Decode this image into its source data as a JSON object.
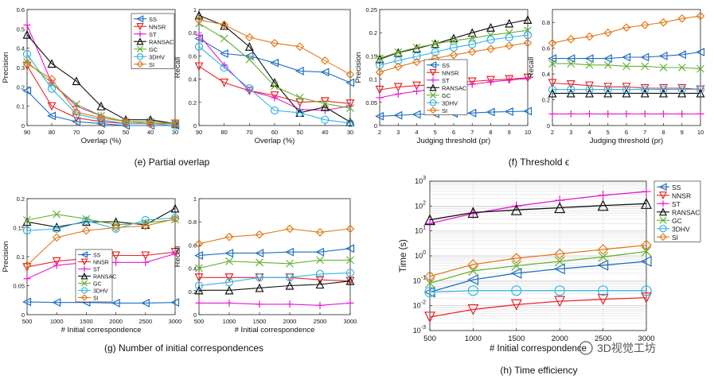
{
  "legend_series": [
    {
      "name": "SS",
      "color": "#1f6fbf",
      "marker": "triangle-left"
    },
    {
      "name": "NNSR",
      "color": "#e8262a",
      "marker": "triangle-down"
    },
    {
      "name": "ST",
      "color": "#e61ad0",
      "marker": "plus"
    },
    {
      "name": "RANSAC",
      "color": "#111111",
      "marker": "triangle-up"
    },
    {
      "name": "GC",
      "color": "#66b032",
      "marker": "x"
    },
    {
      "name": "3DHV",
      "color": "#33b5e5",
      "marker": "circle"
    },
    {
      "name": "SI",
      "color": "#e07b1a",
      "marker": "diamond"
    }
  ],
  "captions": {
    "e": "(e)  Partial overlap",
    "f": "(f)  Threshold ϵ",
    "g": "(g)  Number of initial correspondences",
    "h": "(h)  Time efficiency"
  },
  "watermark": "3D视觉工坊",
  "chart_data": [
    {
      "id": "e-precision",
      "type": "line",
      "ylabel": "Precision",
      "xlabel": "Overlap (%)",
      "x": [
        90,
        80,
        70,
        60,
        50,
        40,
        30
      ],
      "xticks": [
        "90",
        "80",
        "70",
        "60",
        "50",
        "40",
        "30"
      ],
      "ylim": [
        0,
        0.6
      ],
      "yticks": [
        "0",
        "0.1",
        "0.2",
        "0.3",
        "0.4",
        "0.5",
        "0.6"
      ],
      "legend": "top-right",
      "series": [
        {
          "name": "SS",
          "values": [
            0.18,
            0.05,
            0.02,
            0.01,
            0.0,
            0.0,
            0.0
          ]
        },
        {
          "name": "NNSR",
          "values": [
            0.31,
            0.1,
            0.04,
            0.02,
            0.01,
            0.01,
            0.01
          ]
        },
        {
          "name": "ST",
          "values": [
            0.52,
            0.22,
            0.1,
            0.05,
            0.02,
            0.02,
            0.01
          ]
        },
        {
          "name": "RANSAC",
          "values": [
            0.47,
            0.32,
            0.23,
            0.1,
            0.03,
            0.03,
            0.01
          ]
        },
        {
          "name": "GC",
          "values": [
            0.33,
            0.22,
            0.11,
            0.05,
            0.02,
            0.02,
            0.01
          ]
        },
        {
          "name": "3DHV",
          "values": [
            0.37,
            0.19,
            0.06,
            0.03,
            0.01,
            0.01,
            0.0
          ]
        },
        {
          "name": "SI",
          "values": [
            0.32,
            0.24,
            0.07,
            0.04,
            0.02,
            0.01,
            0.01
          ]
        }
      ]
    },
    {
      "id": "e-recall",
      "type": "line",
      "ylabel": "Recall",
      "xlabel": "Overlap (%)",
      "x": [
        90,
        80,
        70,
        60,
        50,
        40,
        30
      ],
      "xticks": [
        "90",
        "80",
        "70",
        "60",
        "50",
        "40",
        "30"
      ],
      "ylim": [
        0,
        1.0
      ],
      "yticks": [
        "0",
        "0.2",
        "0.4",
        "0.6",
        "0.8",
        "1"
      ],
      "legend": "none",
      "series": [
        {
          "name": "SS",
          "values": [
            0.75,
            0.62,
            0.6,
            0.54,
            0.47,
            0.46,
            0.37
          ]
        },
        {
          "name": "NNSR",
          "values": [
            0.51,
            0.37,
            0.3,
            0.26,
            0.2,
            0.21,
            0.19
          ]
        },
        {
          "name": "ST",
          "values": [
            0.78,
            0.52,
            0.3,
            0.24,
            0.14,
            0.13,
            0.17
          ]
        },
        {
          "name": "RANSAC",
          "values": [
            0.95,
            0.86,
            0.68,
            0.37,
            0.11,
            0.16,
            0.03
          ]
        },
        {
          "name": "GC",
          "values": [
            0.88,
            0.75,
            0.57,
            0.34,
            0.24,
            0.19,
            0.15
          ]
        },
        {
          "name": "3DHV",
          "values": [
            0.68,
            0.5,
            0.32,
            0.13,
            0.11,
            0.05,
            0.02
          ]
        },
        {
          "name": "SI",
          "values": [
            0.91,
            0.87,
            0.76,
            0.71,
            0.68,
            0.56,
            0.44
          ]
        }
      ]
    },
    {
      "id": "f-precision",
      "type": "line",
      "ylabel": "Precision",
      "xlabel": "Judging threshold (pr)",
      "x": [
        2,
        3,
        4,
        5,
        6,
        7,
        8,
        9,
        10
      ],
      "xticks": [
        "2",
        "3",
        "4",
        "5",
        "6",
        "7",
        "8",
        "9",
        "10"
      ],
      "ylim": [
        0,
        0.25
      ],
      "yticks": [
        "0",
        "0.05",
        "0.1",
        "0.15",
        "0.2",
        "0.25"
      ],
      "legend": "left",
      "series": [
        {
          "name": "SS",
          "values": [
            0.02,
            0.022,
            0.024,
            0.025,
            0.026,
            0.027,
            0.029,
            0.03,
            0.031
          ]
        },
        {
          "name": "NNSR",
          "values": [
            0.077,
            0.083,
            0.086,
            0.088,
            0.091,
            0.095,
            0.098,
            0.1,
            0.103
          ]
        },
        {
          "name": "ST",
          "values": [
            0.06,
            0.068,
            0.074,
            0.079,
            0.084,
            0.089,
            0.094,
            0.098,
            0.101
          ]
        },
        {
          "name": "RANSAC",
          "values": [
            0.143,
            0.157,
            0.166,
            0.176,
            0.188,
            0.2,
            0.211,
            0.22,
            0.228
          ]
        },
        {
          "name": "GC",
          "values": [
            0.145,
            0.158,
            0.168,
            0.176,
            0.183,
            0.188,
            0.195,
            0.2,
            0.205
          ]
        },
        {
          "name": "3DHV",
          "values": [
            0.13,
            0.14,
            0.149,
            0.158,
            0.168,
            0.175,
            0.185,
            0.19,
            0.195
          ]
        },
        {
          "name": "SI",
          "values": [
            0.115,
            0.127,
            0.137,
            0.145,
            0.152,
            0.159,
            0.165,
            0.172,
            0.178
          ]
        }
      ]
    },
    {
      "id": "f-recall",
      "type": "line",
      "ylabel": "Recall",
      "xlabel": "Judging threshold (pr)",
      "x": [
        2,
        3,
        4,
        5,
        6,
        7,
        8,
        9,
        10
      ],
      "xticks": [
        "2",
        "3",
        "4",
        "5",
        "6",
        "7",
        "8",
        "9",
        "10"
      ],
      "ylim": [
        0,
        0.9
      ],
      "yticks": [
        "0",
        "0.2",
        "0.4",
        "0.6",
        "0.8"
      ],
      "legend": "none",
      "series": [
        {
          "name": "SS",
          "values": [
            0.52,
            0.52,
            0.52,
            0.52,
            0.53,
            0.53,
            0.54,
            0.55,
            0.57
          ]
        },
        {
          "name": "NNSR",
          "values": [
            0.33,
            0.32,
            0.31,
            0.3,
            0.3,
            0.29,
            0.29,
            0.29,
            0.28
          ]
        },
        {
          "name": "ST",
          "values": [
            0.09,
            0.09,
            0.09,
            0.09,
            0.09,
            0.09,
            0.09,
            0.09,
            0.09
          ]
        },
        {
          "name": "RANSAC",
          "values": [
            0.25,
            0.25,
            0.25,
            0.25,
            0.25,
            0.25,
            0.25,
            0.25,
            0.25
          ]
        },
        {
          "name": "GC",
          "values": [
            0.48,
            0.48,
            0.47,
            0.47,
            0.46,
            0.46,
            0.45,
            0.45,
            0.44
          ]
        },
        {
          "name": "3DHV",
          "values": [
            0.28,
            0.28,
            0.28,
            0.28,
            0.28,
            0.28,
            0.28,
            0.28,
            0.28
          ]
        },
        {
          "name": "SI",
          "values": [
            0.64,
            0.67,
            0.69,
            0.72,
            0.76,
            0.78,
            0.8,
            0.83,
            0.85
          ]
        }
      ]
    },
    {
      "id": "g-precision",
      "type": "line",
      "ylabel": "Precision",
      "xlabel": "# Initial correspondence",
      "x": [
        500,
        1000,
        1500,
        2000,
        2500,
        3000
      ],
      "xticks": [
        "500",
        "1000",
        "1500",
        "2000",
        "2500",
        "3000"
      ],
      "ylim": [
        0,
        0.2
      ],
      "yticks": [
        "0",
        "0.05",
        "0.1",
        "0.15",
        "0.2"
      ],
      "legend": "bottom-left",
      "series": [
        {
          "name": "SS",
          "values": [
            0.022,
            0.021,
            0.021,
            0.02,
            0.02,
            0.021
          ]
        },
        {
          "name": "NNSR",
          "values": [
            0.082,
            0.092,
            0.097,
            0.102,
            0.102,
            0.108
          ]
        },
        {
          "name": "ST",
          "values": [
            0.062,
            0.085,
            0.09,
            0.09,
            0.09,
            0.105
          ]
        },
        {
          "name": "RANSAC",
          "values": [
            0.16,
            0.151,
            0.16,
            0.16,
            0.155,
            0.183
          ]
        },
        {
          "name": "GC",
          "values": [
            0.163,
            0.173,
            0.165,
            0.155,
            0.158,
            0.164
          ]
        },
        {
          "name": "3DHV",
          "values": [
            0.145,
            0.148,
            0.162,
            0.148,
            0.163,
            0.167
          ]
        },
        {
          "name": "SI",
          "values": [
            0.085,
            0.133,
            0.145,
            0.15,
            0.153,
            0.165
          ]
        }
      ]
    },
    {
      "id": "g-recall",
      "type": "line",
      "ylabel": "Recall",
      "xlabel": "# Initial correspondence",
      "x": [
        500,
        1000,
        1500,
        2000,
        2500,
        3000
      ],
      "xticks": [
        "500",
        "1000",
        "1500",
        "2000",
        "2500",
        "3000"
      ],
      "ylim": [
        0,
        1.0
      ],
      "yticks": [
        "0",
        "0.2",
        "0.4",
        "0.6",
        "0.8",
        "1"
      ],
      "legend": "none",
      "series": [
        {
          "name": "SS",
          "values": [
            0.51,
            0.53,
            0.53,
            0.54,
            0.54,
            0.57
          ]
        },
        {
          "name": "NNSR",
          "values": [
            0.32,
            0.32,
            0.32,
            0.32,
            0.3,
            0.29
          ]
        },
        {
          "name": "ST",
          "values": [
            0.1,
            0.1,
            0.09,
            0.09,
            0.08,
            0.1
          ]
        },
        {
          "name": "RANSAC",
          "values": [
            0.21,
            0.21,
            0.23,
            0.25,
            0.26,
            0.29
          ]
        },
        {
          "name": "GC",
          "values": [
            0.4,
            0.46,
            0.45,
            0.44,
            0.47,
            0.47
          ]
        },
        {
          "name": "3DHV",
          "values": [
            0.25,
            0.28,
            0.32,
            0.32,
            0.35,
            0.36
          ]
        },
        {
          "name": "SI",
          "values": [
            0.61,
            0.67,
            0.69,
            0.74,
            0.71,
            0.74
          ]
        }
      ]
    },
    {
      "id": "h-time",
      "type": "line",
      "ylabel": "Time (s)",
      "xlabel": "# Initial correspondence",
      "yscale": "log",
      "x": [
        500,
        1000,
        1500,
        2000,
        2500,
        3000
      ],
      "xticks": [
        "500",
        "1000",
        "1500",
        "2000",
        "2500",
        "3000"
      ],
      "ylim": [
        0.001,
        1000
      ],
      "ytick_exponents": [
        -3,
        -2,
        -1,
        0,
        1,
        2,
        3
      ],
      "grid": true,
      "legend": "top-right",
      "series": [
        {
          "name": "SS",
          "values": [
            0.035,
            0.11,
            0.2,
            0.3,
            0.42,
            0.6
          ]
        },
        {
          "name": "NNSR",
          "values": [
            0.0035,
            0.007,
            0.011,
            0.015,
            0.018,
            0.021
          ]
        },
        {
          "name": "ST",
          "values": [
            20,
            50,
            100,
            170,
            270,
            380
          ]
        },
        {
          "name": "RANSAC",
          "values": [
            28,
            55,
            70,
            85,
            105,
            125
          ]
        },
        {
          "name": "GC",
          "values": [
            0.08,
            0.25,
            0.4,
            0.6,
            0.9,
            1.5
          ]
        },
        {
          "name": "3DHV",
          "values": [
            0.035,
            0.04,
            0.04,
            0.04,
            0.04,
            0.04
          ]
        },
        {
          "name": "SI",
          "values": [
            0.15,
            0.45,
            0.8,
            1.2,
            1.8,
            2.7
          ]
        }
      ]
    }
  ]
}
